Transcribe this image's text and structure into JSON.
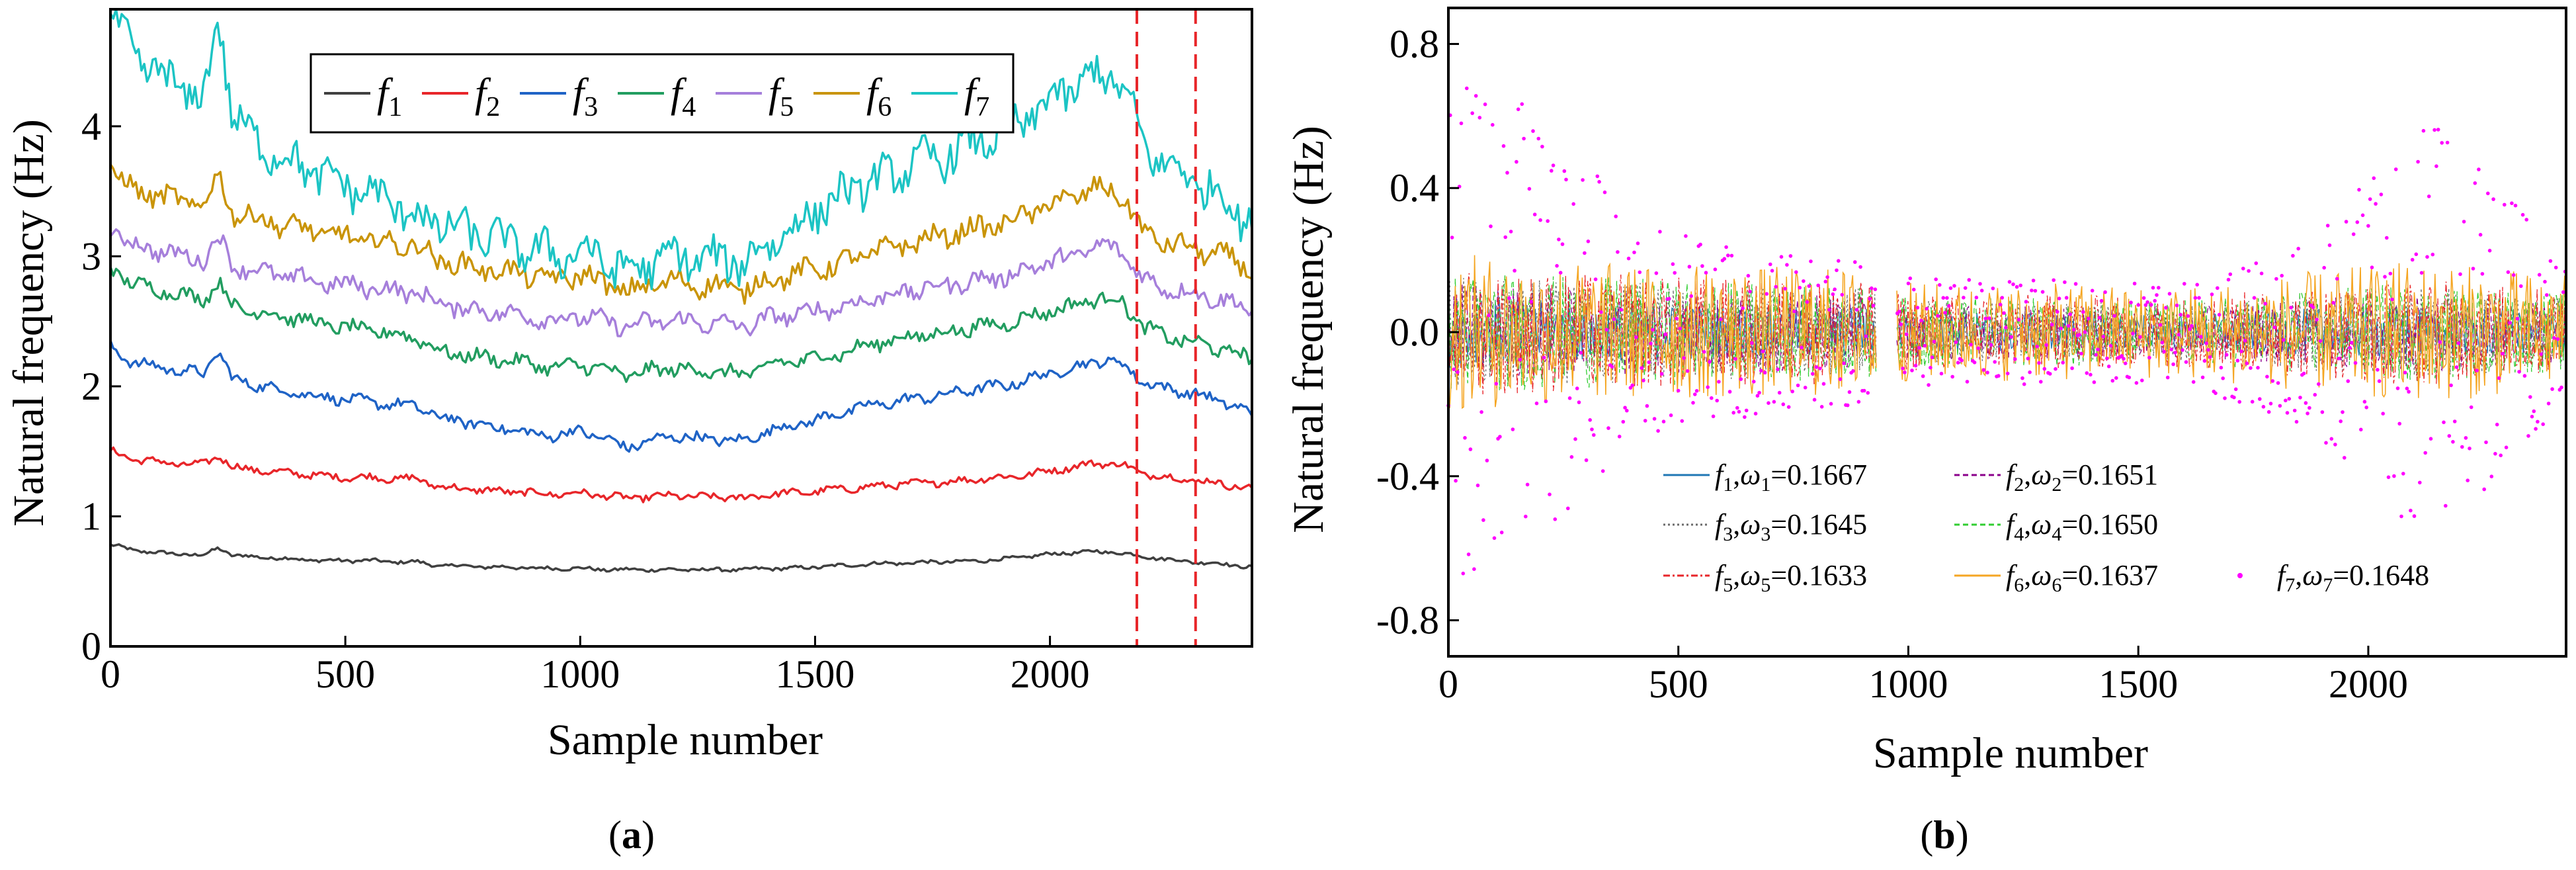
{
  "figure": {
    "panels": [
      {
        "label_open": "(",
        "label_letter": "a",
        "label_close": ")"
      },
      {
        "label_open": "(",
        "label_letter": "b",
        "label_close": ")"
      }
    ]
  },
  "chart_data": [
    {
      "type": "line",
      "panel": "a",
      "xlabel": "Sample number",
      "ylabel": "Natural frequency (Hz)",
      "xlim": [
        0,
        2430
      ],
      "ylim": [
        0,
        4.9
      ],
      "x_ticks": [
        0,
        500,
        1000,
        1500,
        2000
      ],
      "x_tick_labels": [
        "0",
        "500",
        "1000",
        "1500",
        "2000"
      ],
      "y_ticks": [
        0,
        1,
        2,
        3,
        4
      ],
      "y_tick_labels": [
        "0",
        "1",
        "2",
        "3",
        "4"
      ],
      "vertical_lines": [
        2185,
        2310
      ],
      "vertical_line_color": "#e8262a",
      "legend_position": "top",
      "x": [
        0,
        50,
        100,
        150,
        200,
        230,
        260,
        300,
        350,
        400,
        450,
        500,
        550,
        600,
        650,
        700,
        750,
        800,
        850,
        900,
        950,
        1000,
        1050,
        1100,
        1150,
        1200,
        1250,
        1300,
        1350,
        1400,
        1450,
        1500,
        1550,
        1600,
        1650,
        1700,
        1750,
        1800,
        1850,
        1900,
        1950,
        2000,
        2050,
        2100,
        2150,
        2200,
        2250,
        2300,
        2350,
        2400,
        2430
      ],
      "series": [
        {
          "name": "f",
          "sub": "1",
          "color": "#404040",
          "values": [
            0.78,
            0.74,
            0.72,
            0.71,
            0.7,
            0.76,
            0.7,
            0.69,
            0.68,
            0.67,
            0.66,
            0.66,
            0.66,
            0.65,
            0.65,
            0.62,
            0.62,
            0.61,
            0.61,
            0.6,
            0.6,
            0.6,
            0.59,
            0.59,
            0.59,
            0.59,
            0.59,
            0.59,
            0.59,
            0.6,
            0.6,
            0.61,
            0.62,
            0.63,
            0.64,
            0.64,
            0.65,
            0.65,
            0.66,
            0.67,
            0.69,
            0.71,
            0.72,
            0.73,
            0.72,
            0.69,
            0.67,
            0.65,
            0.64,
            0.62,
            0.61
          ]
        },
        {
          "name": "f",
          "sub": "2",
          "color": "#e8262a",
          "values": [
            1.5,
            1.44,
            1.42,
            1.4,
            1.4,
            1.47,
            1.38,
            1.36,
            1.34,
            1.33,
            1.31,
            1.3,
            1.3,
            1.29,
            1.29,
            1.23,
            1.21,
            1.2,
            1.19,
            1.18,
            1.17,
            1.18,
            1.16,
            1.14,
            1.15,
            1.16,
            1.15,
            1.15,
            1.14,
            1.17,
            1.18,
            1.19,
            1.21,
            1.22,
            1.24,
            1.25,
            1.26,
            1.27,
            1.29,
            1.3,
            1.32,
            1.35,
            1.38,
            1.41,
            1.4,
            1.33,
            1.3,
            1.28,
            1.26,
            1.23,
            1.21
          ]
        },
        {
          "name": "f",
          "sub": "3",
          "color": "#1f63c6",
          "values": [
            2.3,
            2.18,
            2.15,
            2.12,
            2.1,
            2.28,
            2.05,
            2.02,
            1.98,
            1.95,
            1.92,
            1.9,
            1.88,
            1.86,
            1.85,
            1.76,
            1.73,
            1.7,
            1.67,
            1.63,
            1.62,
            1.66,
            1.6,
            1.53,
            1.58,
            1.62,
            1.6,
            1.59,
            1.58,
            1.66,
            1.7,
            1.74,
            1.79,
            1.84,
            1.87,
            1.9,
            1.92,
            1.95,
            1.99,
            2.0,
            2.05,
            2.1,
            2.14,
            2.2,
            2.18,
            2.03,
            1.98,
            1.95,
            1.9,
            1.84,
            1.78
          ]
        },
        {
          "name": "f",
          "sub": "4",
          "color": "#229d60",
          "values": [
            2.92,
            2.78,
            2.75,
            2.7,
            2.68,
            2.8,
            2.62,
            2.58,
            2.55,
            2.52,
            2.48,
            2.45,
            2.43,
            2.4,
            2.38,
            2.27,
            2.24,
            2.22,
            2.2,
            2.17,
            2.14,
            2.17,
            2.13,
            2.08,
            2.12,
            2.14,
            2.12,
            2.11,
            2.09,
            2.16,
            2.19,
            2.22,
            2.25,
            2.3,
            2.35,
            2.38,
            2.4,
            2.43,
            2.46,
            2.48,
            2.53,
            2.58,
            2.62,
            2.68,
            2.66,
            2.45,
            2.38,
            2.34,
            2.3,
            2.25,
            2.2
          ]
        },
        {
          "name": "f",
          "sub": "5",
          "color": "#a67fdb",
          "values": [
            3.22,
            3.08,
            3.05,
            3.0,
            2.98,
            3.15,
            2.93,
            2.9,
            2.86,
            2.83,
            2.8,
            2.78,
            2.76,
            2.74,
            2.72,
            2.64,
            2.6,
            2.58,
            2.56,
            2.53,
            2.51,
            2.54,
            2.5,
            2.46,
            2.49,
            2.51,
            2.49,
            2.48,
            2.46,
            2.52,
            2.55,
            2.58,
            2.61,
            2.65,
            2.7,
            2.73,
            2.76,
            2.79,
            2.82,
            2.84,
            2.9,
            2.96,
            3.0,
            3.08,
            3.05,
            2.82,
            2.75,
            2.72,
            2.68,
            2.63,
            2.58
          ]
        },
        {
          "name": "f",
          "sub": "6",
          "color": "#c99408",
          "values": [
            3.68,
            3.5,
            3.47,
            3.42,
            3.4,
            3.62,
            3.34,
            3.3,
            3.26,
            3.22,
            3.18,
            3.15,
            3.12,
            3.1,
            3.08,
            2.97,
            2.93,
            2.9,
            2.88,
            2.85,
            2.82,
            2.86,
            2.8,
            2.72,
            2.78,
            2.81,
            2.78,
            2.77,
            2.74,
            2.82,
            2.86,
            2.9,
            2.94,
            3.0,
            3.06,
            3.1,
            3.14,
            3.18,
            3.22,
            3.25,
            3.32,
            3.4,
            3.46,
            3.52,
            3.48,
            3.18,
            3.1,
            3.06,
            3.02,
            2.96,
            2.9
          ]
        },
        {
          "name": "f",
          "sub": "7",
          "color": "#1cc4c4",
          "values": [
            4.85,
            4.55,
            4.4,
            4.3,
            4.2,
            4.85,
            4.1,
            3.9,
            3.8,
            3.7,
            3.62,
            3.55,
            3.48,
            3.42,
            3.3,
            3.25,
            3.2,
            3.15,
            3.1,
            3.05,
            3.0,
            3.05,
            2.97,
            2.88,
            2.95,
            3.0,
            2.98,
            2.97,
            2.95,
            3.1,
            3.2,
            3.35,
            3.45,
            3.55,
            3.6,
            3.7,
            3.75,
            3.8,
            3.9,
            3.95,
            4.05,
            4.2,
            4.3,
            4.4,
            4.35,
            3.85,
            3.7,
            3.6,
            3.5,
            3.35,
            3.25
          ]
        }
      ]
    },
    {
      "type": "scatter",
      "panel": "b",
      "xlabel": "Sample number",
      "ylabel": "Natural frequency (Hz)",
      "xlim": [
        0,
        2430
      ],
      "ylim": [
        -0.9,
        0.9
      ],
      "x_ticks": [
        0,
        500,
        1000,
        1500,
        2000
      ],
      "x_tick_labels": [
        "0",
        "500",
        "1000",
        "1500",
        "2000"
      ],
      "y_ticks": [
        -0.8,
        -0.4,
        0.0,
        0.4,
        0.8
      ],
      "y_tick_labels": [
        "-0.8",
        "-0.4",
        "0.0",
        "0.4",
        "0.8"
      ],
      "legend_position": "bottom-right",
      "gap_range": [
        930,
        975
      ],
      "series": [
        {
          "name": "f",
          "sub": "1",
          "omega_sub": "1",
          "omega_value": "0.1667",
          "color": "#1f77b4",
          "style": "solid",
          "envelope": [
            [
              0,
              0.1
            ],
            [
              400,
              0.08
            ],
            [
              930,
              0.07
            ],
            [
              975,
              0.06
            ],
            [
              1600,
              0.05
            ],
            [
              2100,
              0.08
            ],
            [
              2430,
              0.06
            ]
          ]
        },
        {
          "name": "f",
          "sub": "2",
          "omega_sub": "2",
          "omega_value": "0.1651",
          "color": "#8b008b",
          "style": "dash",
          "envelope": [
            [
              0,
              0.14
            ],
            [
              400,
              0.12
            ],
            [
              930,
              0.1
            ],
            [
              975,
              0.08
            ],
            [
              1600,
              0.07
            ],
            [
              2100,
              0.11
            ],
            [
              2430,
              0.09
            ]
          ]
        },
        {
          "name": "f",
          "sub": "3",
          "omega_sub": "3",
          "omega_value": "0.1645",
          "color": "#6b6b6b",
          "style": "dot",
          "envelope": [
            [
              0,
              0.16
            ],
            [
              400,
              0.14
            ],
            [
              930,
              0.12
            ],
            [
              975,
              0.09
            ],
            [
              1600,
              0.08
            ],
            [
              2100,
              0.13
            ],
            [
              2430,
              0.1
            ]
          ]
        },
        {
          "name": "f",
          "sub": "4",
          "omega_sub": "4",
          "omega_value": "0.1650",
          "color": "#32cd32",
          "style": "dash",
          "envelope": [
            [
              0,
              0.17
            ],
            [
              400,
              0.15
            ],
            [
              930,
              0.13
            ],
            [
              975,
              0.1
            ],
            [
              1600,
              0.09
            ],
            [
              2100,
              0.14
            ],
            [
              2430,
              0.11
            ]
          ]
        },
        {
          "name": "f",
          "sub": "5",
          "omega_sub": "5",
          "omega_value": "0.1633",
          "color": "#e8262a",
          "style": "dashdot",
          "envelope": [
            [
              0,
              0.18
            ],
            [
              400,
              0.16
            ],
            [
              930,
              0.14
            ],
            [
              975,
              0.11
            ],
            [
              1600,
              0.1
            ],
            [
              2100,
              0.15
            ],
            [
              2430,
              0.12
            ]
          ]
        },
        {
          "name": "f",
          "sub": "6",
          "omega_sub": "6",
          "omega_value": "0.1637",
          "color": "#f5a623",
          "style": "solid",
          "envelope": [
            [
              0,
              0.22
            ],
            [
              400,
              0.19
            ],
            [
              930,
              0.18
            ],
            [
              975,
              0.14
            ],
            [
              1600,
              0.13
            ],
            [
              2100,
              0.2
            ],
            [
              2430,
              0.16
            ]
          ]
        },
        {
          "name": "f",
          "sub": "7",
          "omega_sub": "7",
          "omega_value": "0.1648",
          "color": "#ff00ff",
          "style": "points",
          "envelope": [
            [
              0,
              0.7
            ],
            [
              200,
              0.62
            ],
            [
              420,
              0.3
            ],
            [
              700,
              0.22
            ],
            [
              930,
              0.2
            ],
            [
              975,
              0.15
            ],
            [
              1600,
              0.14
            ],
            [
              1900,
              0.3
            ],
            [
              2150,
              0.62
            ],
            [
              2430,
              0.18
            ]
          ]
        }
      ]
    }
  ]
}
